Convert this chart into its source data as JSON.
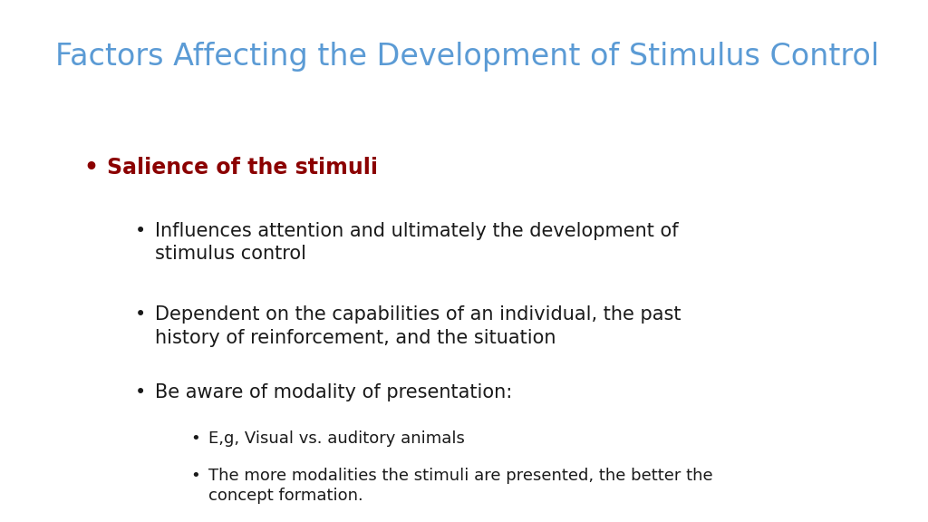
{
  "title": "Factors Affecting the Development of Stimulus Control",
  "title_color": "#5B9BD5",
  "title_fontsize": 24,
  "background_color": "#FFFFFF",
  "bullet1_text": "Salience of the stimuli",
  "bullet1_color": "#8B0000",
  "bullet1_fontsize": 17,
  "sub_bullets": [
    {
      "text": "Influences attention and ultimately the development of\nstimulus control",
      "fontsize": 15,
      "color": "#1a1a1a"
    },
    {
      "text": "Dependent on the capabilities of an individual, the past\nhistory of reinforcement, and the situation",
      "fontsize": 15,
      "color": "#1a1a1a"
    },
    {
      "text": "Be aware of modality of presentation:",
      "fontsize": 15,
      "color": "#1a1a1a"
    }
  ],
  "sub_sub_bullets": [
    {
      "text": "E,g, Visual vs. auditory animals",
      "fontsize": 13,
      "color": "#1a1a1a"
    },
    {
      "text": "The more modalities the stimuli are presented, the better the\nconcept formation.",
      "fontsize": 13,
      "color": "#1a1a1a"
    }
  ]
}
